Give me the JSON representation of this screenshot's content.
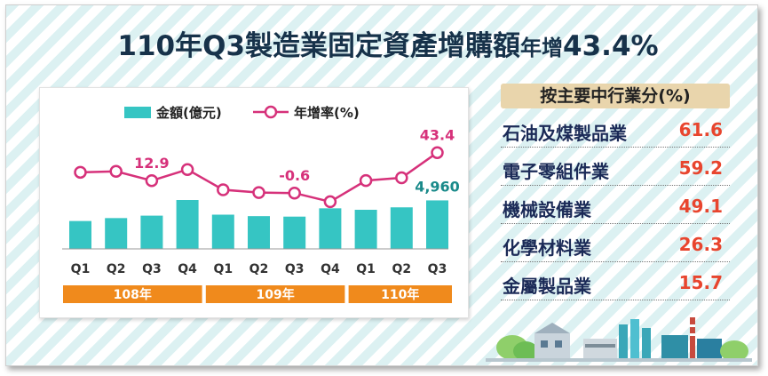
{
  "header": {
    "title_prefix": "110年Q3製造業固定資產增購額",
    "title_mid": "年增",
    "title_value": "43.4%"
  },
  "chart_data": {
    "type": "bar",
    "categories": [
      "Q1",
      "Q2",
      "Q3",
      "Q4",
      "Q1",
      "Q2",
      "Q3",
      "Q4",
      "Q1",
      "Q2",
      "Q3"
    ],
    "groups": [
      {
        "label": "108年",
        "start": 0,
        "end": 3
      },
      {
        "label": "109年",
        "start": 4,
        "end": 7
      },
      {
        "label": "110年",
        "start": 8,
        "end": 10
      }
    ],
    "series": [
      {
        "name": "金額(億元)",
        "type": "bar",
        "color": "#36c5c3",
        "values": [
          2850,
          3150,
          3400,
          5000,
          3500,
          3350,
          3300,
          4150,
          4000,
          4250,
          4960
        ]
      },
      {
        "name": "年增率(%)",
        "type": "line",
        "color": "#d6317a",
        "values": [
          22,
          23,
          12.9,
          25,
          3,
          0,
          -0.6,
          -10,
          13,
          16,
          43.4
        ]
      }
    ],
    "data_labels": [
      {
        "series": 1,
        "index": 2,
        "text": "12.9"
      },
      {
        "series": 1,
        "index": 6,
        "text": "-0.6"
      },
      {
        "series": 1,
        "index": 10,
        "text": "43.4"
      },
      {
        "series": 0,
        "index": 10,
        "text": "4,960"
      }
    ],
    "legend_position": "top",
    "grid": false
  },
  "table": {
    "header": "按主要中行業分(%)",
    "rows": [
      {
        "name": "石油及煤製品業",
        "value": "61.6"
      },
      {
        "name": "電子零組件業",
        "value": "59.2"
      },
      {
        "name": "機械設備業",
        "value": "49.1"
      },
      {
        "name": "化學材料業",
        "value": "26.3"
      },
      {
        "name": "金屬製品業",
        "value": "15.7"
      }
    ]
  },
  "colors": {
    "bar": "#36c5c3",
    "line": "#d6317a",
    "year_band": "#f08a1c",
    "value_text": "#e8452e",
    "title_text": "#17324a"
  }
}
